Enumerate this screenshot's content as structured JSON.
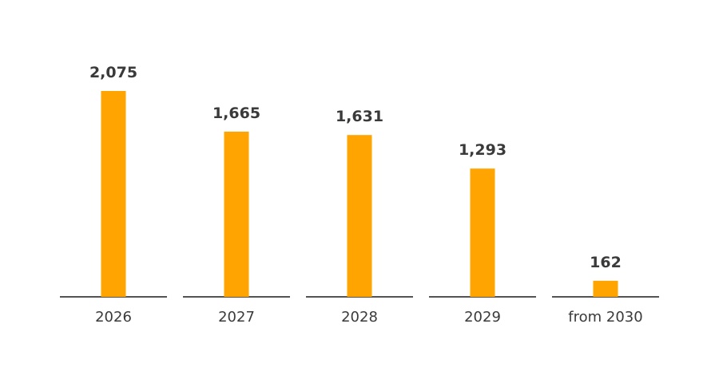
{
  "chart_data": {
    "type": "bar",
    "title": "",
    "xlabel": "",
    "ylabel": "",
    "categories": [
      "2026",
      "2027",
      "2028",
      "2029",
      "from 2030"
    ],
    "values": [
      2075,
      1665,
      1631,
      1293,
      162
    ],
    "value_labels": [
      "2,075",
      "1,665",
      "1,631",
      "1,293",
      "162"
    ],
    "ylim": [
      0,
      2075
    ],
    "grid": false,
    "legend": "none",
    "colors": {
      "bar": "#FFA400",
      "value_text": "#3a3a3a",
      "category_text": "#3a3a3a",
      "baseline": "#1a1a1a"
    }
  }
}
